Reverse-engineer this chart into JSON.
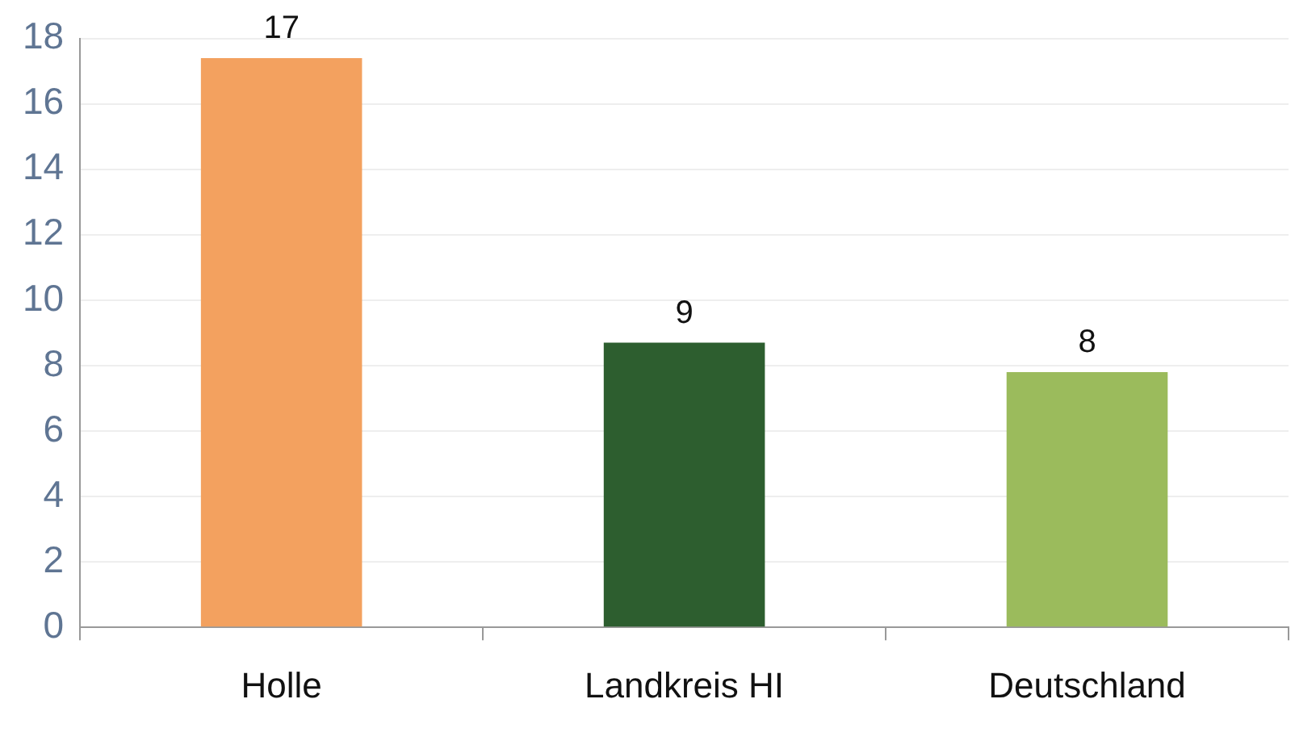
{
  "chart_data": {
    "type": "bar",
    "categories": [
      "Holle",
      "Landkreis HI",
      "Deutschland"
    ],
    "values": [
      17.4,
      8.7,
      7.8
    ],
    "colors": [
      "#f3a15f",
      "#2d5e2f",
      "#9bbb5c"
    ],
    "value_labels": [
      "17",
      "9",
      "8"
    ],
    "ylim": [
      0,
      18
    ],
    "yticks": [
      0,
      2,
      4,
      6,
      8,
      10,
      12,
      14,
      16,
      18
    ],
    "grid": "y",
    "legend": false
  }
}
